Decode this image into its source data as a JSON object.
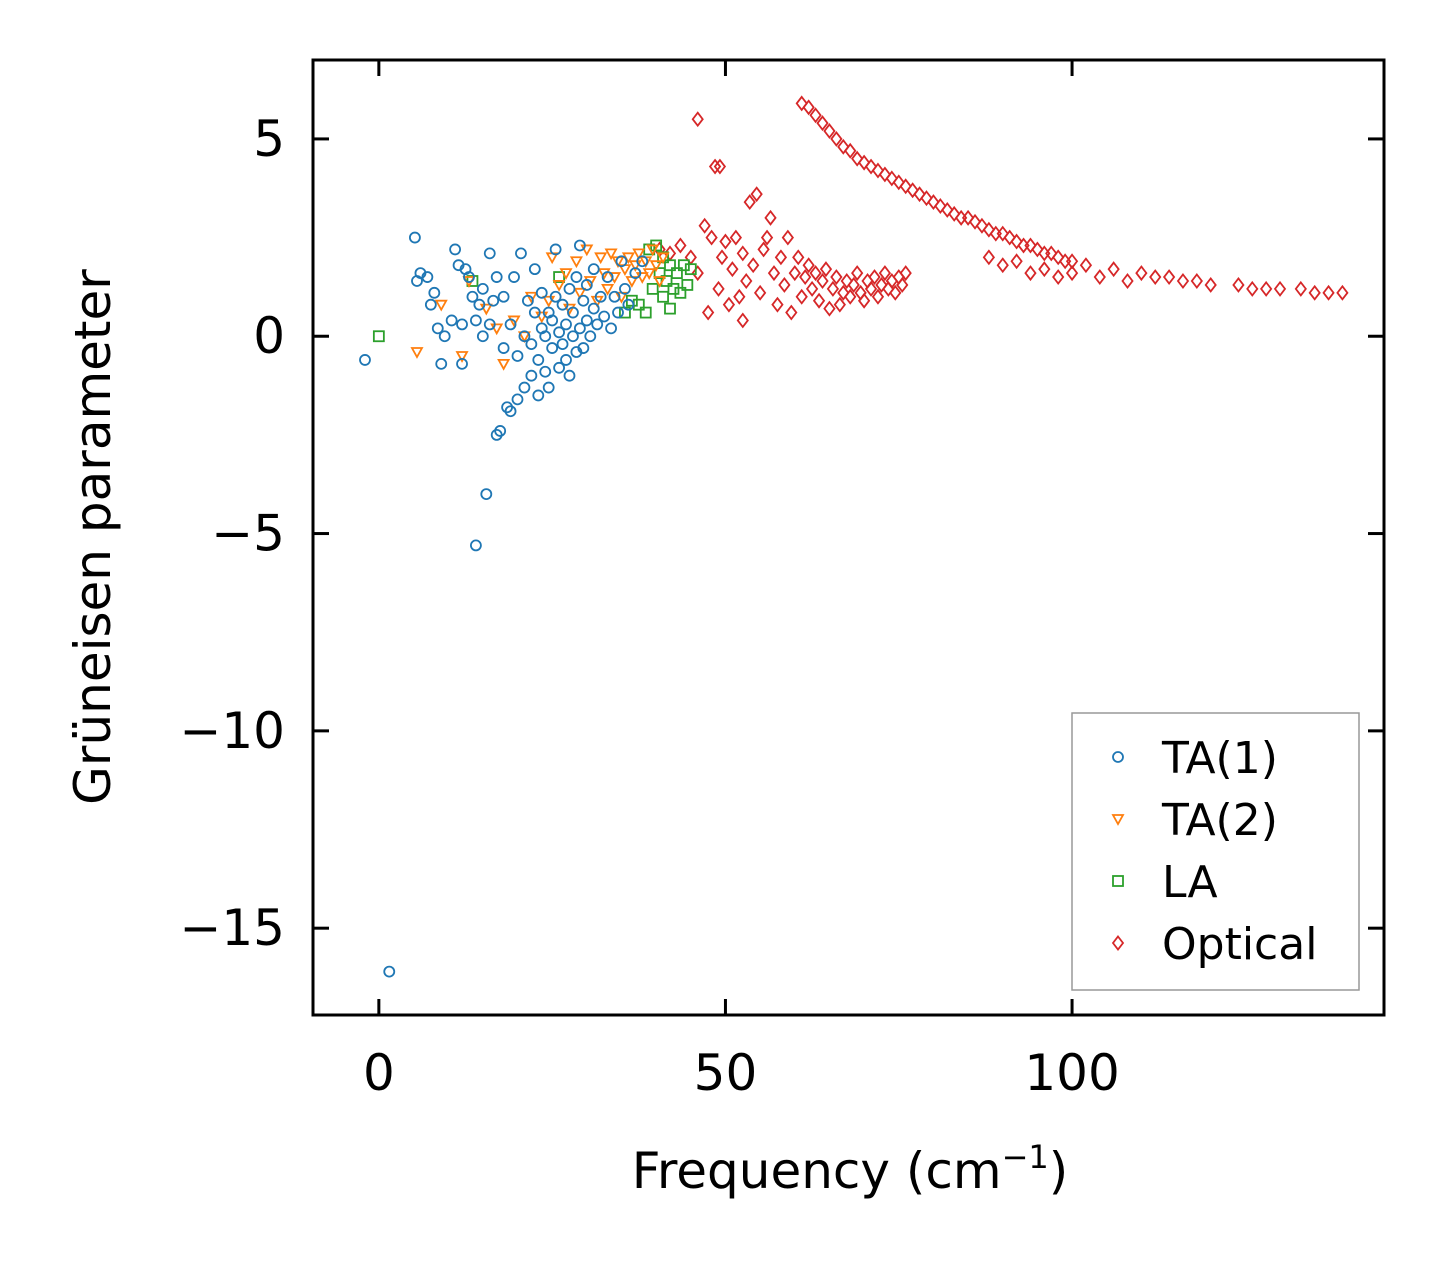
{
  "chart_data": {
    "type": "scatter",
    "title": "",
    "xlabel": "Frequency (cm",
    "xlabel_sup": "−1",
    "xlabel_end": ")",
    "ylabel": "Grüneisen parameter",
    "xlim": [
      -9.5,
      145
    ],
    "ylim": [
      -17.2,
      7.0
    ],
    "xticks": [
      0,
      50,
      100
    ],
    "yticks": [
      5,
      0,
      -5,
      -10,
      -15
    ],
    "xtick_labels": [
      "0",
      "50",
      "100"
    ],
    "ytick_labels": [
      "5",
      "0",
      "−5",
      "−10",
      "−15"
    ],
    "legend_position": "lower-right",
    "series": [
      {
        "name": "TA(1)",
        "marker": "circle",
        "color": "#1f77b4",
        "points": [
          [
            -2.0,
            -0.6
          ],
          [
            1.5,
            -16.1
          ],
          [
            5.2,
            2.5
          ],
          [
            5.5,
            1.4
          ],
          [
            6.0,
            1.6
          ],
          [
            7.0,
            1.5
          ],
          [
            7.5,
            0.8
          ],
          [
            8.0,
            1.1
          ],
          [
            8.5,
            0.2
          ],
          [
            9.0,
            -0.7
          ],
          [
            9.5,
            0.0
          ],
          [
            10.5,
            0.4
          ],
          [
            11.0,
            2.2
          ],
          [
            11.5,
            1.8
          ],
          [
            12.0,
            -0.7
          ],
          [
            12.0,
            0.3
          ],
          [
            12.5,
            1.7
          ],
          [
            13.0,
            1.5
          ],
          [
            13.5,
            1.0
          ],
          [
            14.0,
            0.4
          ],
          [
            14.0,
            -5.3
          ],
          [
            14.5,
            0.8
          ],
          [
            15.0,
            0.0
          ],
          [
            15.0,
            1.2
          ],
          [
            15.5,
            -4.0
          ],
          [
            16.0,
            2.1
          ],
          [
            16.0,
            0.3
          ],
          [
            16.5,
            0.9
          ],
          [
            17.0,
            -2.5
          ],
          [
            17.5,
            -2.4
          ],
          [
            17.0,
            1.5
          ],
          [
            18.0,
            1.0
          ],
          [
            18.0,
            -0.3
          ],
          [
            18.5,
            -1.8
          ],
          [
            19.0,
            -1.9
          ],
          [
            19.0,
            0.3
          ],
          [
            19.5,
            1.5
          ],
          [
            20.0,
            -1.6
          ],
          [
            20.0,
            -0.5
          ],
          [
            20.5,
            2.1
          ],
          [
            21.0,
            -1.3
          ],
          [
            21.0,
            0.0
          ],
          [
            21.5,
            0.9
          ],
          [
            22.0,
            -1.0
          ],
          [
            22.0,
            -0.2
          ],
          [
            22.5,
            0.6
          ],
          [
            22.5,
            1.7
          ],
          [
            23.0,
            -1.5
          ],
          [
            23.0,
            -0.6
          ],
          [
            23.5,
            0.2
          ],
          [
            23.5,
            1.1
          ],
          [
            24.0,
            -0.9
          ],
          [
            24.0,
            0.0
          ],
          [
            24.5,
            0.6
          ],
          [
            24.5,
            -1.3
          ],
          [
            25.0,
            -0.3
          ],
          [
            25.0,
            0.4
          ],
          [
            25.5,
            1.0
          ],
          [
            25.5,
            2.2
          ],
          [
            26.0,
            -0.8
          ],
          [
            26.0,
            0.1
          ],
          [
            26.5,
            0.8
          ],
          [
            26.5,
            -0.2
          ],
          [
            27.0,
            -0.6
          ],
          [
            27.0,
            0.3
          ],
          [
            27.5,
            1.2
          ],
          [
            27.5,
            -1.0
          ],
          [
            28.0,
            0.0
          ],
          [
            28.0,
            0.6
          ],
          [
            28.5,
            -0.4
          ],
          [
            28.5,
            1.5
          ],
          [
            29.0,
            0.2
          ],
          [
            29.0,
            2.3
          ],
          [
            29.5,
            0.9
          ],
          [
            29.5,
            -0.3
          ],
          [
            30.0,
            0.4
          ],
          [
            30.0,
            1.3
          ],
          [
            30.5,
            0.0
          ],
          [
            31.0,
            0.7
          ],
          [
            31.0,
            1.7
          ],
          [
            31.5,
            0.3
          ],
          [
            32.0,
            1.0
          ],
          [
            32.5,
            0.5
          ],
          [
            33.0,
            1.5
          ],
          [
            33.5,
            0.2
          ],
          [
            34.0,
            1.0
          ],
          [
            34.5,
            0.6
          ],
          [
            35.0,
            1.9
          ],
          [
            35.5,
            1.2
          ],
          [
            36.0,
            0.8
          ],
          [
            37.0,
            1.6
          ],
          [
            38.0,
            1.9
          ]
        ]
      },
      {
        "name": "TA(2)",
        "marker": "triangle-down",
        "color": "#ff7f0e",
        "points": [
          [
            5.5,
            -0.4
          ],
          [
            9.0,
            0.8
          ],
          [
            12.0,
            -0.5
          ],
          [
            13.0,
            1.4
          ],
          [
            15.5,
            0.7
          ],
          [
            17.0,
            0.2
          ],
          [
            18.0,
            -0.7
          ],
          [
            19.5,
            0.4
          ],
          [
            21.0,
            0.0
          ],
          [
            22.0,
            1.0
          ],
          [
            23.5,
            0.5
          ],
          [
            24.5,
            0.9
          ],
          [
            25.0,
            2.0
          ],
          [
            26.0,
            1.3
          ],
          [
            27.0,
            1.6
          ],
          [
            27.5,
            0.7
          ],
          [
            28.5,
            1.9
          ],
          [
            29.0,
            1.1
          ],
          [
            30.0,
            2.2
          ],
          [
            30.5,
            1.4
          ],
          [
            31.5,
            0.9
          ],
          [
            32.0,
            2.0
          ],
          [
            32.5,
            1.6
          ],
          [
            33.0,
            1.2
          ],
          [
            33.5,
            2.1
          ],
          [
            34.0,
            1.5
          ],
          [
            34.5,
            1.9
          ],
          [
            35.0,
            1.0
          ],
          [
            35.5,
            1.7
          ],
          [
            36.0,
            2.0
          ],
          [
            36.5,
            1.4
          ],
          [
            37.0,
            1.8
          ],
          [
            37.5,
            2.1
          ],
          [
            38.0,
            1.5
          ],
          [
            38.5,
            1.9
          ],
          [
            39.0,
            1.6
          ],
          [
            39.5,
            2.2
          ],
          [
            40.0,
            1.8
          ],
          [
            40.5,
            1.4
          ],
          [
            41.0,
            2.0
          ]
        ]
      },
      {
        "name": "LA",
        "marker": "square",
        "color": "#2ca02c",
        "points": [
          [
            0.0,
            0.0
          ],
          [
            13.5,
            1.4
          ],
          [
            26.0,
            1.5
          ],
          [
            35.5,
            0.6
          ],
          [
            36.5,
            0.9
          ],
          [
            37.5,
            0.8
          ],
          [
            38.5,
            0.6
          ],
          [
            39.0,
            2.2
          ],
          [
            39.5,
            1.2
          ],
          [
            40.0,
            2.3
          ],
          [
            40.5,
            1.6
          ],
          [
            41.0,
            1.0
          ],
          [
            41.0,
            2.0
          ],
          [
            41.5,
            1.4
          ],
          [
            42.0,
            0.7
          ],
          [
            42.0,
            1.8
          ],
          [
            42.5,
            1.2
          ],
          [
            43.0,
            1.6
          ],
          [
            43.5,
            1.1
          ],
          [
            44.0,
            1.8
          ],
          [
            44.5,
            1.3
          ],
          [
            45.0,
            1.7
          ]
        ]
      },
      {
        "name": "Optical",
        "marker": "diamond",
        "color": "#d62728",
        "points": [
          [
            46.0,
            5.5
          ],
          [
            48.5,
            4.3
          ],
          [
            49.2,
            4.3
          ],
          [
            40.5,
            2.2
          ],
          [
            42.0,
            2.1
          ],
          [
            43.5,
            2.3
          ],
          [
            45.0,
            2.0
          ],
          [
            46.0,
            1.6
          ],
          [
            47.0,
            2.8
          ],
          [
            47.5,
            0.6
          ],
          [
            48.0,
            2.5
          ],
          [
            49.0,
            1.2
          ],
          [
            49.5,
            2.0
          ],
          [
            50.0,
            2.4
          ],
          [
            50.5,
            0.8
          ],
          [
            51.0,
            1.7
          ],
          [
            51.5,
            2.5
          ],
          [
            52.0,
            1.0
          ],
          [
            52.5,
            0.4
          ],
          [
            52.5,
            2.1
          ],
          [
            53.0,
            1.4
          ],
          [
            53.5,
            3.4
          ],
          [
            54.0,
            1.8
          ],
          [
            54.5,
            3.6
          ],
          [
            55.0,
            1.1
          ],
          [
            55.5,
            2.2
          ],
          [
            56.0,
            2.5
          ],
          [
            56.5,
            3.0
          ],
          [
            57.0,
            1.6
          ],
          [
            57.5,
            0.8
          ],
          [
            58.0,
            2.0
          ],
          [
            58.5,
            1.3
          ],
          [
            59.0,
            2.5
          ],
          [
            59.5,
            0.6
          ],
          [
            60.0,
            1.6
          ],
          [
            60.5,
            2.0
          ],
          [
            61.0,
            1.0
          ],
          [
            61.5,
            1.5
          ],
          [
            62.0,
            1.8
          ],
          [
            62.5,
            1.2
          ],
          [
            63.0,
            1.6
          ],
          [
            63.5,
            0.9
          ],
          [
            64.0,
            1.4
          ],
          [
            64.5,
            1.7
          ],
          [
            65.0,
            0.7
          ],
          [
            65.5,
            1.2
          ],
          [
            66.0,
            1.5
          ],
          [
            66.5,
            0.8
          ],
          [
            67.0,
            1.1
          ],
          [
            67.5,
            1.4
          ],
          [
            68.0,
            1.0
          ],
          [
            68.5,
            1.3
          ],
          [
            69.0,
            1.6
          ],
          [
            69.5,
            1.1
          ],
          [
            70.0,
            0.9
          ],
          [
            70.5,
            1.4
          ],
          [
            71.0,
            1.2
          ],
          [
            71.5,
            1.5
          ],
          [
            72.0,
            1.0
          ],
          [
            72.5,
            1.3
          ],
          [
            73.0,
            1.6
          ],
          [
            73.5,
            1.2
          ],
          [
            74.0,
            1.4
          ],
          [
            74.5,
            1.1
          ],
          [
            75.0,
            1.5
          ],
          [
            75.5,
            1.3
          ],
          [
            76.0,
            1.6
          ],
          [
            61.0,
            5.9
          ],
          [
            62.0,
            5.8
          ],
          [
            63.0,
            5.6
          ],
          [
            64.0,
            5.4
          ],
          [
            65.0,
            5.2
          ],
          [
            66.0,
            5.0
          ],
          [
            67.0,
            4.8
          ],
          [
            68.0,
            4.7
          ],
          [
            69.0,
            4.5
          ],
          [
            70.0,
            4.4
          ],
          [
            71.0,
            4.3
          ],
          [
            72.0,
            4.2
          ],
          [
            73.0,
            4.1
          ],
          [
            74.0,
            4.0
          ],
          [
            75.0,
            3.9
          ],
          [
            76.0,
            3.8
          ],
          [
            77.0,
            3.7
          ],
          [
            78.0,
            3.6
          ],
          [
            79.0,
            3.5
          ],
          [
            80.0,
            3.4
          ],
          [
            81.0,
            3.3
          ],
          [
            82.0,
            3.2
          ],
          [
            83.0,
            3.1
          ],
          [
            84.0,
            3.0
          ],
          [
            85.0,
            3.0
          ],
          [
            86.0,
            2.9
          ],
          [
            87.0,
            2.8
          ],
          [
            88.0,
            2.7
          ],
          [
            89.0,
            2.6
          ],
          [
            90.0,
            2.6
          ],
          [
            91.0,
            2.5
          ],
          [
            92.0,
            2.4
          ],
          [
            93.0,
            2.3
          ],
          [
            94.0,
            2.3
          ],
          [
            95.0,
            2.2
          ],
          [
            96.0,
            2.1
          ],
          [
            97.0,
            2.1
          ],
          [
            98.0,
            2.0
          ],
          [
            99.0,
            1.9
          ],
          [
            100.0,
            1.9
          ],
          [
            88.0,
            2.0
          ],
          [
            90.0,
            1.8
          ],
          [
            92.0,
            1.9
          ],
          [
            94.0,
            1.6
          ],
          [
            96.0,
            1.7
          ],
          [
            98.0,
            1.5
          ],
          [
            100.0,
            1.6
          ],
          [
            102.0,
            1.8
          ],
          [
            104.0,
            1.5
          ],
          [
            106.0,
            1.7
          ],
          [
            108.0,
            1.4
          ],
          [
            110.0,
            1.6
          ],
          [
            112.0,
            1.5
          ],
          [
            114.0,
            1.5
          ],
          [
            116.0,
            1.4
          ],
          [
            118.0,
            1.4
          ],
          [
            120.0,
            1.3
          ],
          [
            124.0,
            1.3
          ],
          [
            126.0,
            1.2
          ],
          [
            128.0,
            1.2
          ],
          [
            130.0,
            1.2
          ],
          [
            133.0,
            1.2
          ],
          [
            135.0,
            1.1
          ],
          [
            137.0,
            1.1
          ],
          [
            139.0,
            1.1
          ]
        ]
      }
    ]
  }
}
